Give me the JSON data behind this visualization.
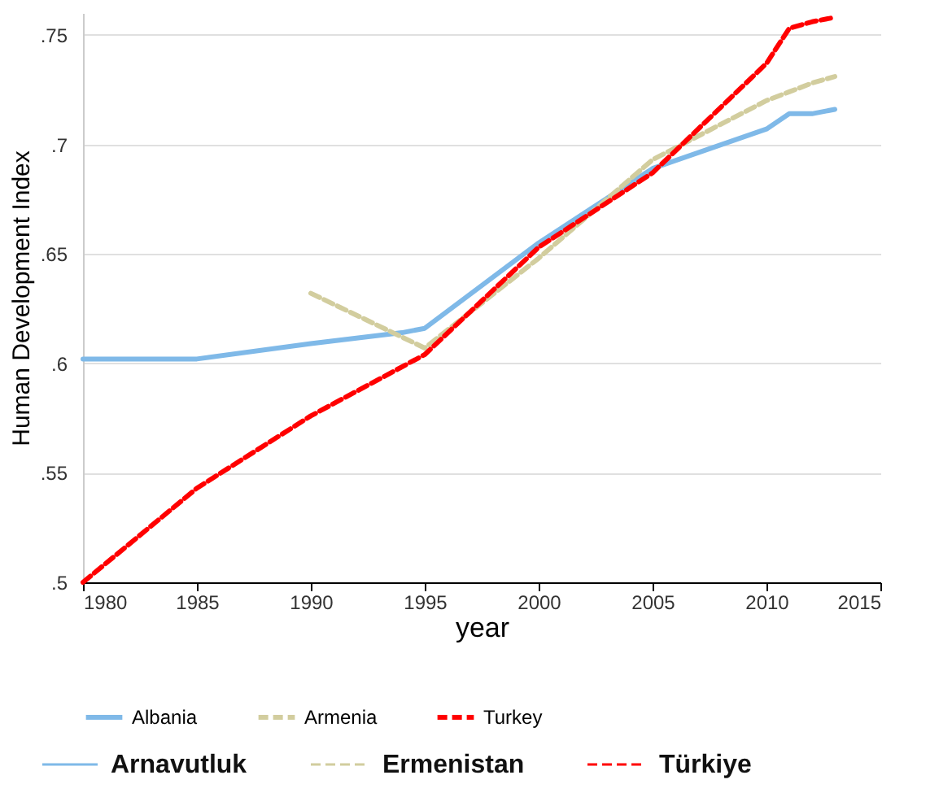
{
  "chart_data": {
    "type": "line",
    "xlabel": "year",
    "ylabel": "Human Development Index",
    "xlim": [
      1980,
      2015
    ],
    "xticks": [
      1980,
      1985,
      1990,
      1995,
      2000,
      2005,
      2010,
      2015
    ],
    "ylim": [
      0.5,
      0.76
    ],
    "yticks": [
      {
        "value": 0.5,
        "label": ".5"
      },
      {
        "value": 0.55,
        "label": ".55"
      },
      {
        "value": 0.6,
        "label": ".6"
      },
      {
        "value": 0.65,
        "label": ".65"
      },
      {
        "value": 0.7,
        "label": ".7"
      },
      {
        "value": 0.75,
        "label": ".75"
      }
    ],
    "grid": "y",
    "legend": "bottom",
    "marker": "none",
    "series": [
      {
        "name": "Albania",
        "color": "#7fb9e8",
        "line_style": "solid",
        "x": [
          1980,
          1985,
          1990,
          1994,
          1995,
          2000,
          2005,
          2010,
          2011,
          2012,
          2013
        ],
        "values": [
          0.602,
          0.602,
          0.609,
          0.614,
          0.616,
          0.655,
          0.689,
          0.707,
          0.714,
          0.714,
          0.716
        ]
      },
      {
        "name": "Armenia",
        "color": "#d2cd9e",
        "line_style": "dashed",
        "x": [
          1990,
          1995,
          2000,
          2005,
          2010,
          2011,
          2012,
          2013
        ],
        "values": [
          0.632,
          0.607,
          0.648,
          0.693,
          0.72,
          0.724,
          0.728,
          0.731
        ]
      },
      {
        "name": "Turkey",
        "color": "#ff0000",
        "line_style": "dashed",
        "x": [
          1980,
          1985,
          1990,
          1995,
          2000,
          2005,
          2010,
          2011,
          2012,
          2013
        ],
        "values": [
          0.5,
          0.543,
          0.576,
          0.604,
          0.653,
          0.687,
          0.737,
          0.753,
          0.756,
          0.758
        ]
      }
    ],
    "annotations": [
      "Arnavutluk",
      "Ermenistan",
      "Türkiye"
    ]
  }
}
